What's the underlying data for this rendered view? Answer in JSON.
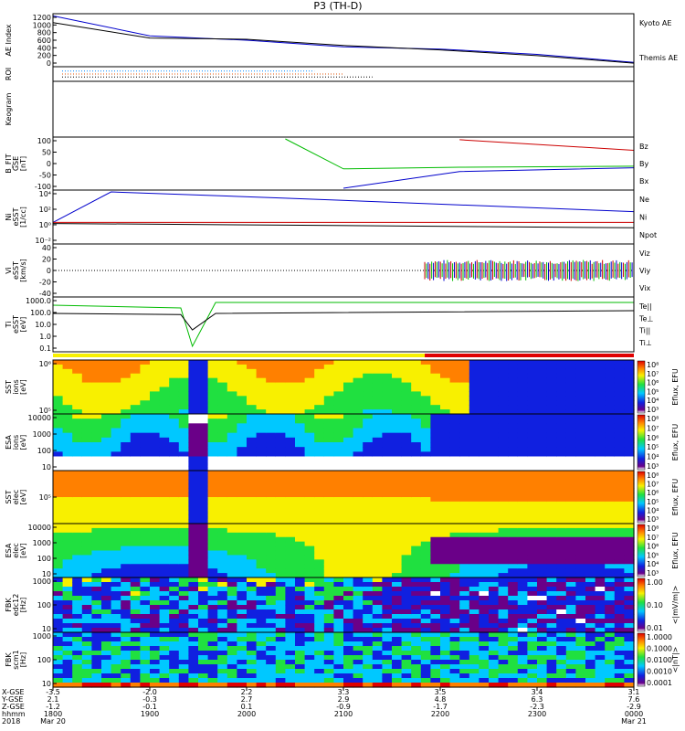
{
  "title": "P3 (TH-D)",
  "panels": [
    {
      "id": "ae",
      "ylabel": [
        "AE Index"
      ],
      "yticks": [
        "1200",
        "1000",
        "800",
        "600",
        "400",
        "200",
        "0"
      ],
      "legend": [
        {
          "text": "Kyoto AE",
          "color": "#0000cc"
        },
        {
          "text": "Themis AE",
          "color": "#000000"
        }
      ]
    },
    {
      "id": "roi",
      "ylabel": [
        "ROI"
      ],
      "yticks": [],
      "legend": []
    },
    {
      "id": "keogram",
      "ylabel": [
        "Keogram"
      ],
      "yticks": [],
      "legend": []
    },
    {
      "id": "bfit",
      "ylabel": [
        "B_FIT",
        "GSE",
        "[nT]"
      ],
      "yticks": [
        "100",
        "50",
        "0",
        "-50",
        "-100"
      ],
      "legend": [
        {
          "text": "Bz",
          "color": "#cc0000"
        },
        {
          "text": "By",
          "color": "#00bb00"
        },
        {
          "text": "Bx",
          "color": "#0000cc"
        }
      ]
    },
    {
      "id": "density",
      "ylabel": [
        "Ni",
        "eSST",
        "[1/cc]"
      ],
      "yticks": [
        "10⁴",
        "10²",
        "10⁰",
        "10⁻²"
      ],
      "legend": [
        {
          "text": "Ne",
          "color": "#cc0000"
        },
        {
          "text": "Ni",
          "color": "#0000cc"
        },
        {
          "text": "Npot",
          "color": "#0000cc"
        }
      ]
    },
    {
      "id": "velocity",
      "ylabel": [
        "Vi",
        "eSST",
        "[km/s]"
      ],
      "yticks": [
        "40",
        "20",
        "0",
        "-20",
        "-40"
      ],
      "legend": [
        {
          "text": "Viz",
          "color": "#cc0000"
        },
        {
          "text": "Viy",
          "color": "#00bb00"
        },
        {
          "text": "Vix",
          "color": "#0000cc"
        }
      ]
    },
    {
      "id": "temp",
      "ylabel": [
        "Ti",
        "eSST",
        "[eV]"
      ],
      "yticks": [
        "1000.0",
        "100.0",
        "10.0",
        "1.0",
        "0.1"
      ],
      "legend": [
        {
          "text": "Te||",
          "color": "#000000"
        },
        {
          "text": "Te⊥",
          "color": "#cc0000"
        },
        {
          "text": "Ti||",
          "color": "#00bb00"
        },
        {
          "text": "Ti⊥",
          "color": "#0000cc"
        }
      ]
    },
    {
      "id": "sst_i",
      "ylabel": [
        "SST",
        "ions",
        "[eV]"
      ],
      "yticks": [
        "10⁶",
        "10⁵"
      ],
      "cticks": [
        "10⁸",
        "10⁷",
        "10⁶",
        "10⁵",
        "10⁴",
        "10³"
      ],
      "clabel": "Eflux, EFU"
    },
    {
      "id": "esa_i",
      "ylabel": [
        "ESA",
        "ions",
        "[eV]"
      ],
      "yticks": [
        "10000",
        "1000",
        "100",
        "10"
      ],
      "cticks": [
        "10⁸",
        "10⁷",
        "10⁶",
        "10⁵",
        "10⁴",
        "10³"
      ],
      "clabel": "Eflux, EFU"
    },
    {
      "id": "sst_e",
      "ylabel": [
        "SST",
        "elec",
        "[eV]"
      ],
      "yticks": [
        "10⁵"
      ],
      "cticks": [
        "10⁸",
        "10⁷",
        "10⁶",
        "10⁵",
        "10⁴",
        "10³"
      ],
      "clabel": "Eflux, EFU"
    },
    {
      "id": "esa_e",
      "ylabel": [
        "ESA",
        "elec",
        "[eV]"
      ],
      "yticks": [
        "10000",
        "1000",
        "100",
        "10"
      ],
      "cticks": [
        "10⁸",
        "10⁷",
        "10⁶",
        "10⁵",
        "10⁴",
        "10³"
      ],
      "clabel": "Eflux, EFU"
    },
    {
      "id": "fbk_e",
      "ylabel": [
        "FBK",
        "edc12",
        "[Hz]"
      ],
      "yticks": [
        "1000",
        "100",
        "10"
      ],
      "cticks": [
        "1.00",
        "0.10",
        "0.01"
      ],
      "clabel": "<|mV/m|>"
    },
    {
      "id": "fbk_b",
      "ylabel": [
        "FBK",
        "scm1",
        "[Hz]"
      ],
      "yticks": [
        "1000",
        "100",
        "10"
      ],
      "cticks": [
        "1.0000",
        "0.1000",
        "0.0100",
        "0.0010",
        "0.0001"
      ],
      "clabel": "<|nT|>"
    }
  ],
  "xaxis": {
    "row_labels": [
      "X-GSE",
      "Y-GSE",
      "Z-GSE",
      "hhmm",
      "2018"
    ],
    "columns": [
      {
        "values": [
          "-3.5",
          "2.1",
          "-1.2",
          "1800",
          "Mar 20"
        ]
      },
      {
        "values": [
          "-2.0",
          "-0.3",
          "-0.1",
          "1900",
          ""
        ]
      },
      {
        "values": [
          "2.2",
          "2.7",
          "0.1",
          "2000",
          ""
        ]
      },
      {
        "values": [
          "3.3",
          "2.9",
          "-0.9",
          "2100",
          ""
        ]
      },
      {
        "values": [
          "3.5",
          "4.8",
          "-1.7",
          "2200",
          ""
        ]
      },
      {
        "values": [
          "3.4",
          "6.3",
          "-2.3",
          "2300",
          ""
        ]
      },
      {
        "values": [
          "3.1",
          "7.6",
          "-2.9",
          "0000",
          "Mar 21"
        ]
      }
    ]
  },
  "chart_data": {
    "type": "line",
    "title": "P3 (TH-D)",
    "x": [
      "1800",
      "1900",
      "2000",
      "2100",
      "2200",
      "2300",
      "0000"
    ],
    "series": [
      {
        "name": "Kyoto AE",
        "values": [
          1150,
          700,
          600,
          450,
          400,
          280,
          100
        ]
      },
      {
        "name": "Themis AE",
        "values": [
          1000,
          650,
          620,
          480,
          380,
          250,
          80
        ]
      }
    ],
    "ylabel": "AE Index",
    "ylim": [
      0,
      1200
    ]
  }
}
